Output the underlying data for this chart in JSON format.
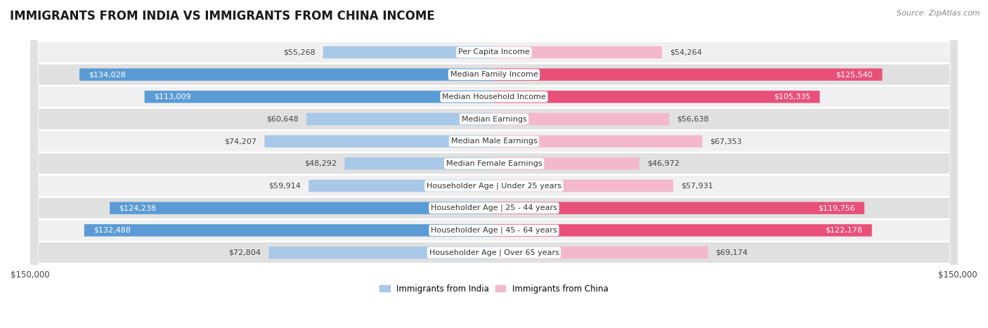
{
  "title": "IMMIGRANTS FROM INDIA VS IMMIGRANTS FROM CHINA INCOME",
  "source": "Source: ZipAtlas.com",
  "categories": [
    "Per Capita Income",
    "Median Family Income",
    "Median Household Income",
    "Median Earnings",
    "Median Male Earnings",
    "Median Female Earnings",
    "Householder Age | Under 25 years",
    "Householder Age | 25 - 44 years",
    "Householder Age | 45 - 64 years",
    "Householder Age | Over 65 years"
  ],
  "india_values": [
    55268,
    134028,
    113009,
    60648,
    74207,
    48292,
    59914,
    124238,
    132488,
    72804
  ],
  "china_values": [
    54264,
    125540,
    105335,
    56638,
    67353,
    46972,
    57931,
    119756,
    122178,
    69174
  ],
  "india_color_light": "#a8c8e8",
  "india_color_dark": "#5b9bd5",
  "china_color_light": "#f4b8cc",
  "china_color_dark": "#e8507a",
  "max_value": 150000,
  "xlabel_left": "$150,000",
  "xlabel_right": "$150,000",
  "background_color": "#ffffff",
  "row_bg_light": "#f0f0f0",
  "row_bg_dark": "#e0e0e0",
  "india_legend_label": "Immigrants from India",
  "china_legend_label": "Immigrants from China",
  "title_fontsize": 12,
  "source_fontsize": 8,
  "bar_label_fontsize": 8,
  "category_fontsize": 8,
  "axis_label_fontsize": 8.5,
  "india_threshold": 90000,
  "china_threshold": 90000
}
